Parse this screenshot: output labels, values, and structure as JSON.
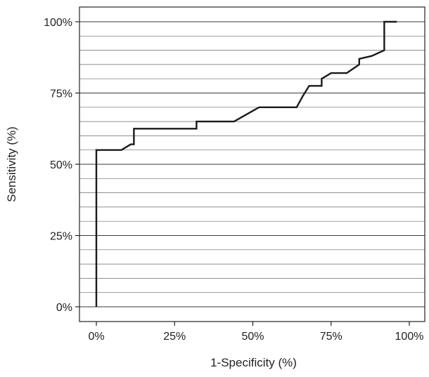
{
  "chart_data": {
    "type": "line",
    "title": "",
    "xlabel": "1-Specificity (%)",
    "ylabel": "Sensitivity (%)",
    "xlim": [
      0,
      100
    ],
    "ylim": [
      0,
      100
    ],
    "x_ticks": [
      0,
      25,
      50,
      75,
      100
    ],
    "x_tick_labels": [
      "0%",
      "25%",
      "50%",
      "75%",
      "100%"
    ],
    "y_ticks": [
      0,
      25,
      50,
      75,
      100
    ],
    "y_tick_labels": [
      "0%",
      "25%",
      "50%",
      "75%",
      "100%"
    ],
    "y_gridline_step": 5,
    "grid": "horizontal",
    "legend": "none",
    "series": [
      {
        "color": "#1a1a1a",
        "x": [
          0,
          0,
          8,
          11,
          11,
          12,
          12,
          32,
          32,
          35,
          44,
          48,
          52,
          64,
          66,
          68,
          72,
          72,
          75,
          80,
          84,
          84,
          88,
          92,
          92,
          96
        ],
        "y": [
          0,
          55,
          55,
          57,
          57,
          57,
          62.5,
          62.5,
          65,
          65,
          65,
          67.5,
          70,
          70,
          74,
          77.5,
          77.5,
          80,
          82,
          82,
          85,
          87,
          88,
          90,
          100,
          100
        ]
      }
    ]
  }
}
